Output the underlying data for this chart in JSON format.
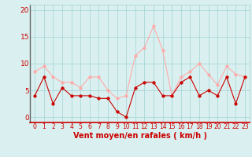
{
  "x": [
    0,
    1,
    2,
    3,
    4,
    5,
    6,
    7,
    8,
    9,
    10,
    11,
    12,
    13,
    14,
    15,
    16,
    17,
    18,
    19,
    20,
    21,
    22,
    23
  ],
  "wind_mean": [
    4,
    7.5,
    2.5,
    5.5,
    4,
    4,
    4,
    3.5,
    3.5,
    1,
    0,
    5.5,
    6.5,
    6.5,
    4,
    4,
    6.5,
    7.5,
    4,
    5,
    4,
    7.5,
    2.5,
    7.5
  ],
  "wind_gust": [
    8.5,
    9.5,
    7.5,
    6.5,
    6.5,
    5.5,
    7.5,
    7.5,
    5,
    3.5,
    4,
    11.5,
    13,
    17,
    12.5,
    4,
    7.5,
    8.5,
    10,
    8,
    6,
    9.5,
    8,
    7.5
  ],
  "mean_color": "#cc0000",
  "gust_color": "#ffaaaa",
  "bg_color": "#daf0f0",
  "grid_color": "#aad8d8",
  "axis_color": "#cc0000",
  "xlabel": "Vent moyen/en rafales ( km/h )",
  "ylim": [
    -1,
    21
  ],
  "yticks": [
    0,
    5,
    10,
    15,
    20
  ],
  "xticks": [
    0,
    1,
    2,
    3,
    4,
    5,
    6,
    7,
    8,
    9,
    10,
    11,
    12,
    13,
    14,
    15,
    16,
    17,
    18,
    19,
    20,
    21,
    22,
    23
  ]
}
